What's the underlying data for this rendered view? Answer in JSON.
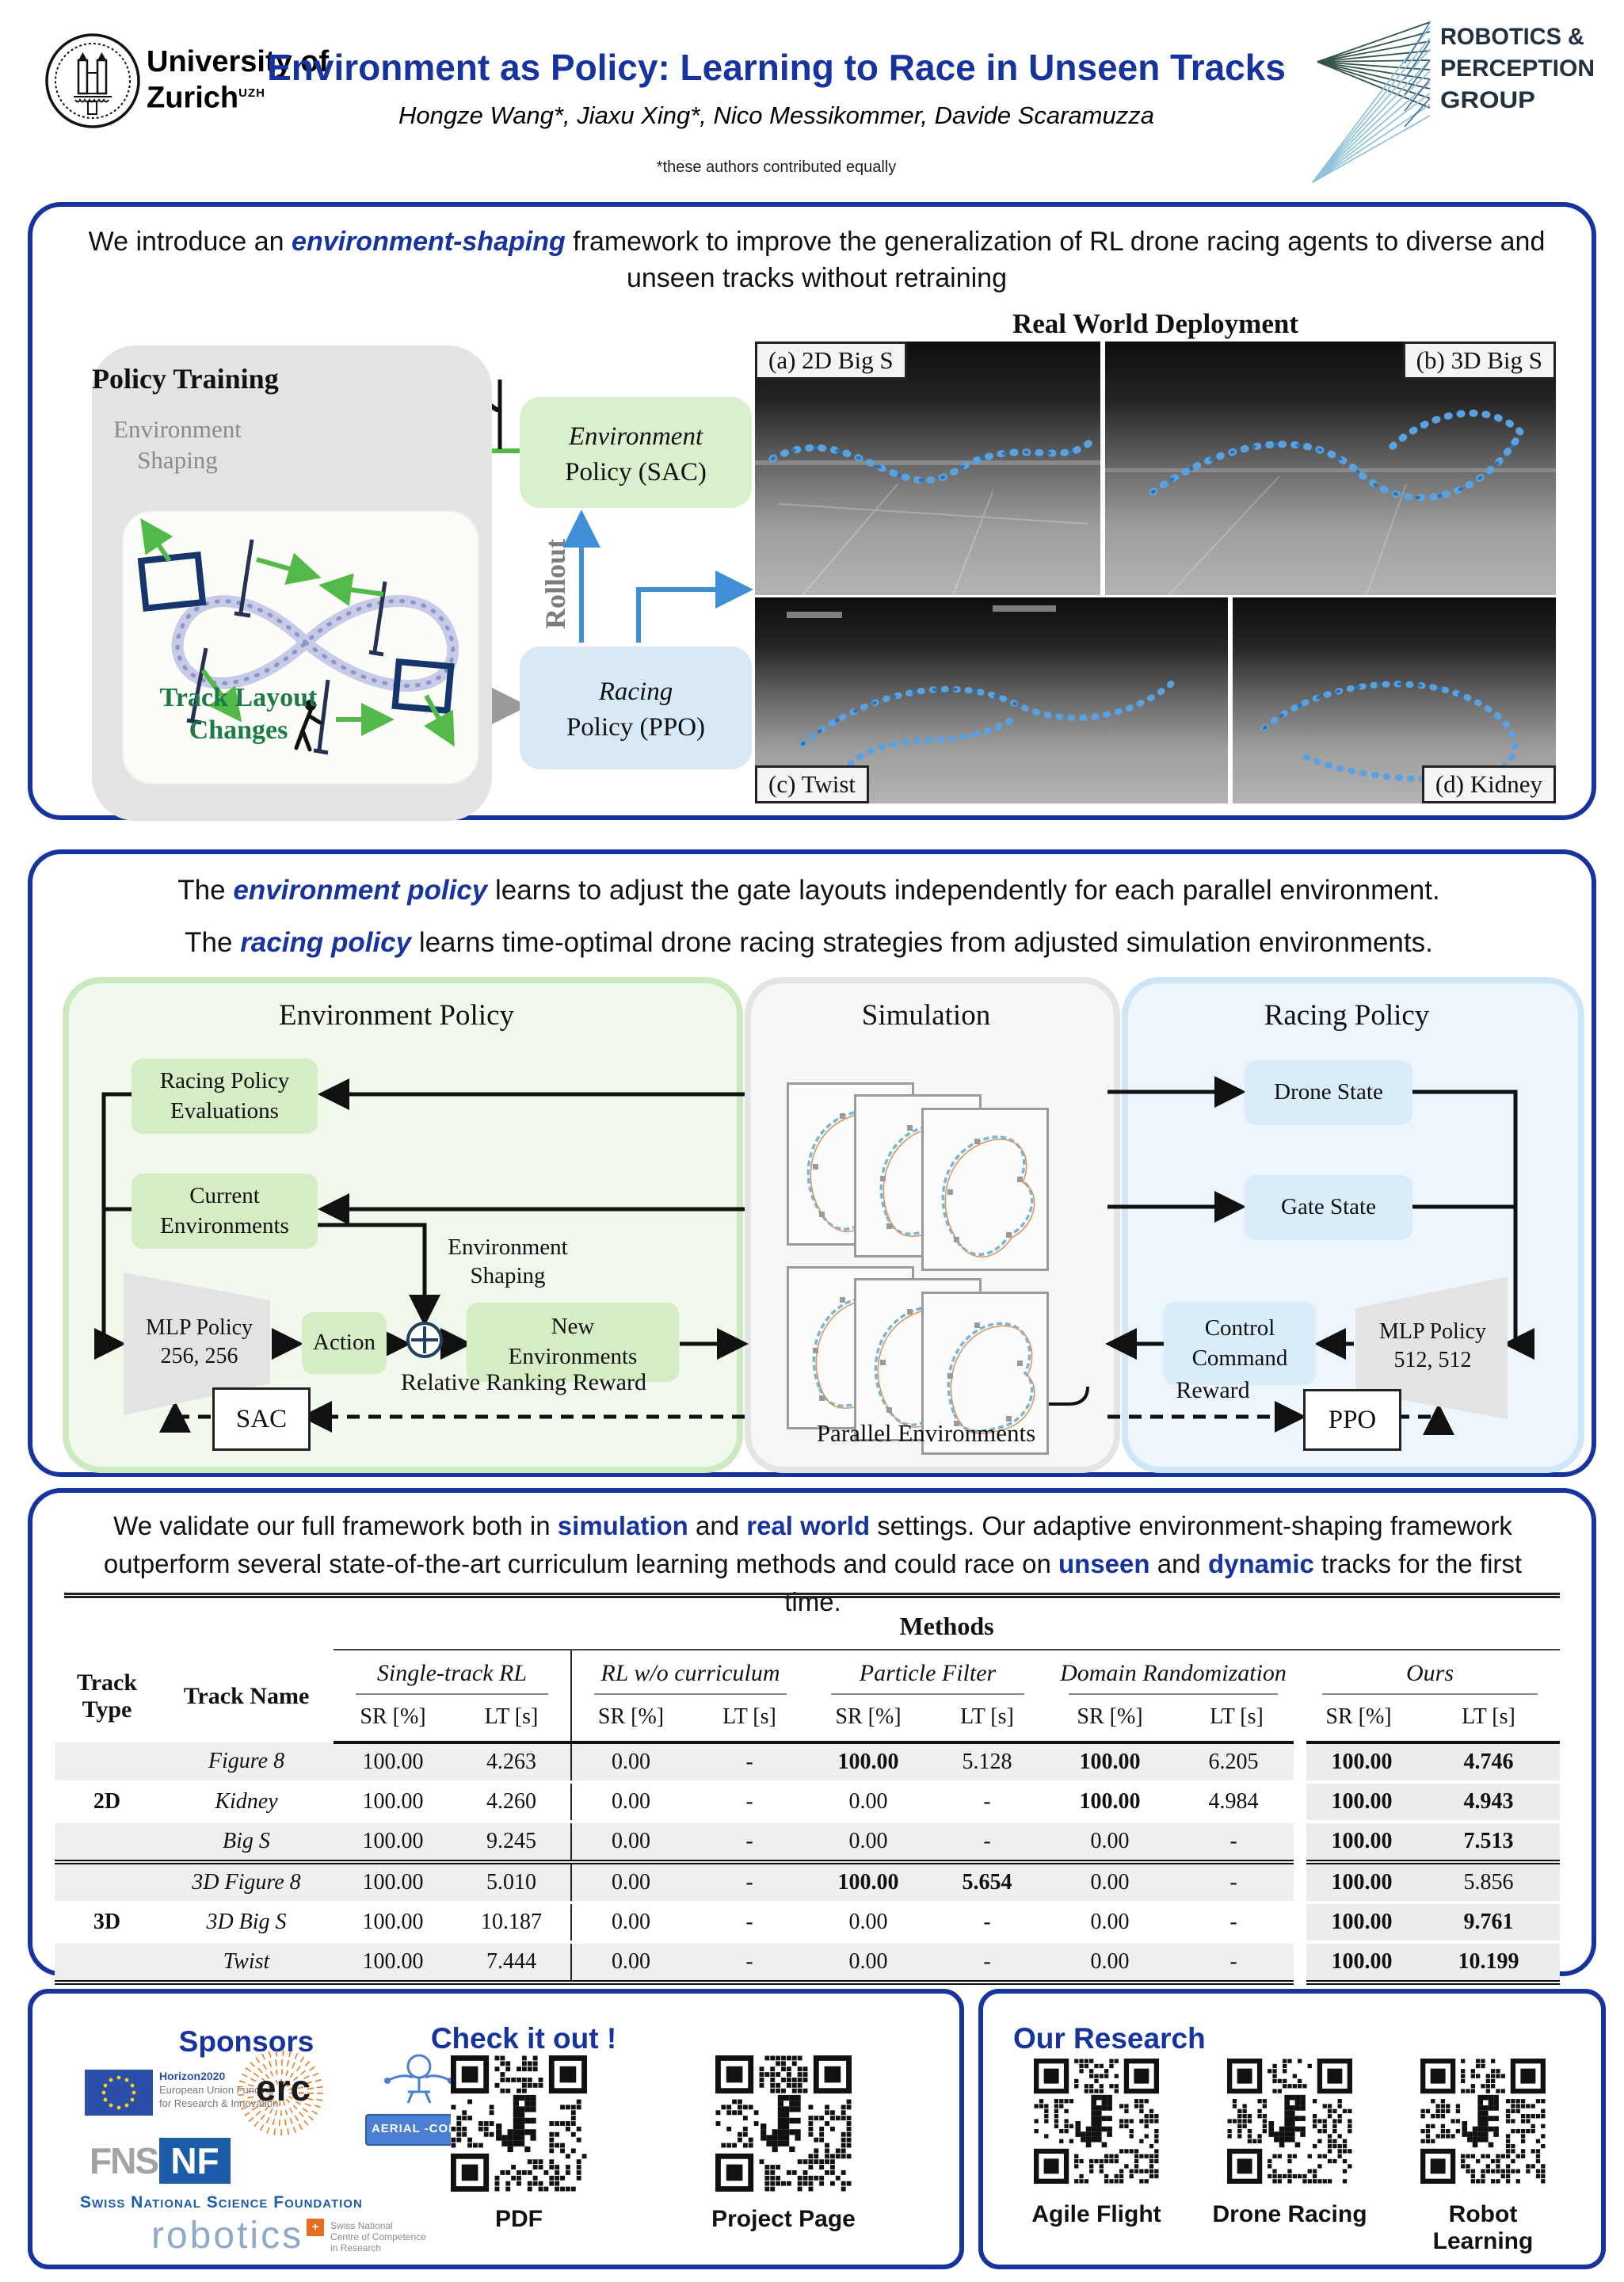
{
  "colors": {
    "accent": "#16339e",
    "green_arrow": "#53b948",
    "blue_arrow": "#3f8fd6",
    "track_label_green": "#1e7a46",
    "snsf_blue": "#1d5ca8",
    "erc_orange": "#e87722"
  },
  "header": {
    "university": {
      "line1": "University of",
      "line2": "Zurich",
      "sup": "UZH"
    },
    "title": "Environment as Policy: Learning to Race in Unseen Tracks",
    "authors": "Hongze Wang*, Jiaxu Xing*, Nico Messikommer, Davide Scaramuzza",
    "footnote": "*these authors contributed equally",
    "group_logo": {
      "line1": "ROBOTICS &",
      "line2": "PERCEPTION",
      "line3": "GROUP"
    }
  },
  "rich": {
    "p1_intro": [
      {
        "t": "We introduce an "
      },
      {
        "t": "environment-shaping",
        "em": 1
      },
      {
        "t": " framework to improve the generalization of RL drone racing agents to diverse and unseen tracks without retraining"
      }
    ],
    "p2_line1": [
      {
        "t": "The "
      },
      {
        "t": "environment policy",
        "em": 1
      },
      {
        "t": " learns to adjust the gate layouts independently for each parallel environment."
      }
    ],
    "p2_line2": [
      {
        "t": "The "
      },
      {
        "t": "racing policy",
        "em": 1
      },
      {
        "t": " learns time-optimal drone racing strategies from adjusted simulation environments."
      }
    ],
    "p3_text": [
      {
        "t": "We validate our full framework both in "
      },
      {
        "t": "simulation",
        "em": 2
      },
      {
        "t": " and "
      },
      {
        "t": "real world",
        "em": 2
      },
      {
        "t": " settings. Our adaptive environment-shaping framework outperform several state-of-the-art curriculum learning methods and could race on "
      },
      {
        "t": "unseen",
        "em": 2
      },
      {
        "t": " and "
      },
      {
        "t": "dynamic",
        "em": 2
      },
      {
        "t": " tracks for the first time."
      }
    ]
  },
  "training": {
    "title": "Policy Training",
    "env_shaping": "Environment\nShaping",
    "track_changes": "Track Layout Changes",
    "rollout": "Rollout",
    "env_policy_line1": "Environment",
    "env_policy_line2": "Policy (SAC)",
    "racing_policy_line1": "Racing",
    "racing_policy_line2": "Policy (PPO)"
  },
  "deployment": {
    "title": "Real World Deployment",
    "photos": [
      {
        "label": "(a) 2D Big S"
      },
      {
        "label": "(b) 3D Big S"
      },
      {
        "label": "(c) Twist"
      },
      {
        "label": "(d) Kidney"
      }
    ]
  },
  "envpolicy": {
    "title": "Environment Policy",
    "rpe1": "Racing Policy",
    "rpe2": "Evaluations",
    "cur1": "Current",
    "cur2": "Environments",
    "mlp1": "MLP Policy",
    "mlp2": "256, 256",
    "action": "Action",
    "new1": "New",
    "new2": "Environments",
    "sac": "SAC",
    "shaping1": "Environment",
    "shaping2": "Shaping",
    "reward_label": "Relative Ranking Reward"
  },
  "simulation": {
    "title": "Simulation",
    "caption": "Parallel Environments"
  },
  "racingpolicy": {
    "title": "Racing Policy",
    "drone": "Drone State",
    "gate": "Gate State",
    "ctrl1": "Control",
    "ctrl2": "Command",
    "mlp1": "MLP Policy",
    "mlp2": "512, 512",
    "ppo": "PPO",
    "reward_label": "Reward"
  },
  "table": {
    "methods_header": "Methods",
    "col_track_type": "Track Type",
    "col_track_name": "Track Name",
    "groups": [
      "Single-track RL",
      "RL w/o curriculum",
      "Particle Filter",
      "Domain Randomization",
      "Ours"
    ],
    "sub_sr": "SR [%]",
    "sub_lt": "LT [s]",
    "sections": [
      {
        "type": "2D",
        "rows": [
          {
            "name": "Figure 8",
            "shaded": true,
            "cells": [
              [
                "100.00",
                0
              ],
              [
                "4.263",
                0
              ],
              [
                "0.00",
                0
              ],
              [
                "-",
                0
              ],
              [
                "100.00",
                1
              ],
              [
                "5.128",
                0
              ],
              [
                "100.00",
                1
              ],
              [
                "6.205",
                0
              ],
              [
                "100.00",
                1
              ],
              [
                "4.746",
                1
              ]
            ]
          },
          {
            "name": "Kidney",
            "shaded": false,
            "cells": [
              [
                "100.00",
                0
              ],
              [
                "4.260",
                0
              ],
              [
                "0.00",
                0
              ],
              [
                "-",
                0
              ],
              [
                "0.00",
                0
              ],
              [
                "-",
                0
              ],
              [
                "100.00",
                1
              ],
              [
                "4.984",
                0
              ],
              [
                "100.00",
                1
              ],
              [
                "4.943",
                1
              ]
            ]
          },
          {
            "name": "Big S",
            "shaded": true,
            "cells": [
              [
                "100.00",
                0
              ],
              [
                "9.245",
                0
              ],
              [
                "0.00",
                0
              ],
              [
                "-",
                0
              ],
              [
                "0.00",
                0
              ],
              [
                "-",
                0
              ],
              [
                "0.00",
                0
              ],
              [
                "-",
                0
              ],
              [
                "100.00",
                1
              ],
              [
                "7.513",
                1
              ]
            ]
          }
        ]
      },
      {
        "type": "3D",
        "rows": [
          {
            "name": "3D Figure 8",
            "shaded": true,
            "cells": [
              [
                "100.00",
                0
              ],
              [
                "5.010",
                0
              ],
              [
                "0.00",
                0
              ],
              [
                "-",
                0
              ],
              [
                "100.00",
                1
              ],
              [
                "5.654",
                1
              ],
              [
                "0.00",
                0
              ],
              [
                "-",
                0
              ],
              [
                "100.00",
                1
              ],
              [
                "5.856",
                0
              ]
            ]
          },
          {
            "name": "3D Big S",
            "shaded": false,
            "cells": [
              [
                "100.00",
                0
              ],
              [
                "10.187",
                0
              ],
              [
                "0.00",
                0
              ],
              [
                "-",
                0
              ],
              [
                "0.00",
                0
              ],
              [
                "-",
                0
              ],
              [
                "0.00",
                0
              ],
              [
                "-",
                0
              ],
              [
                "100.00",
                1
              ],
              [
                "9.761",
                1
              ]
            ]
          },
          {
            "name": "Twist",
            "shaded": true,
            "cells": [
              [
                "100.00",
                0
              ],
              [
                "7.444",
                0
              ],
              [
                "0.00",
                0
              ],
              [
                "-",
                0
              ],
              [
                "0.00",
                0
              ],
              [
                "-",
                0
              ],
              [
                "0.00",
                0
              ],
              [
                "-",
                0
              ],
              [
                "100.00",
                1
              ],
              [
                "10.199",
                1
              ]
            ]
          }
        ]
      }
    ]
  },
  "footer": {
    "sponsors_title": "Sponsors",
    "checkitout_title": "Check it out !",
    "qr_left": [
      {
        "label": "PDF"
      },
      {
        "label": "Project Page"
      }
    ],
    "research_title": "Our Research",
    "qr_right": [
      {
        "label": "Agile Flight"
      },
      {
        "label": "Drone Racing"
      },
      {
        "label": "Robot Learning"
      }
    ],
    "logos": {
      "eu1": "Horizon2020",
      "eu2": "European Union Funding",
      "eu3": "for Research & Innovation",
      "erc": "erc",
      "aerial": "AERIAL -CORE",
      "fns": "FNS",
      "nf": "NF",
      "snsf": "Swiss National Science Foundation",
      "robotics": "robotics",
      "nccr1": "Swiss National",
      "nccr2": "Centre of Competence",
      "nccr3": "in Research"
    }
  }
}
